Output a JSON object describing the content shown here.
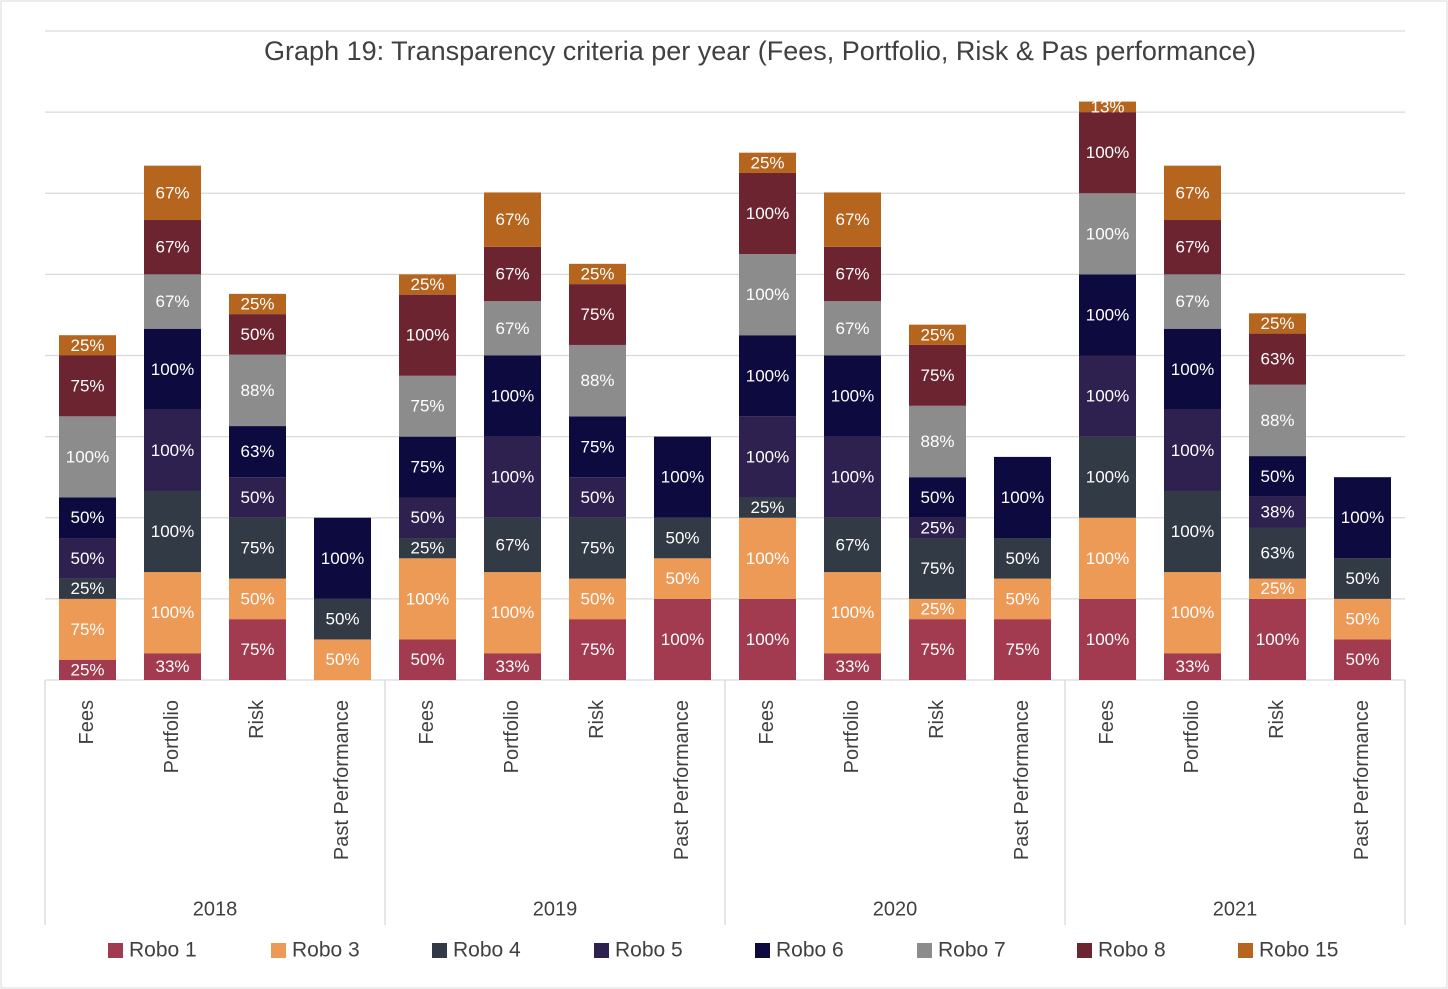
{
  "chart_data": {
    "type": "stacked_bar",
    "title": "Graph 19: Transparency criteria per year (Fees, Portfolio, Risk & Pas performance)",
    "groups": [
      "2018",
      "2019",
      "2020",
      "2021"
    ],
    "categories": [
      "Fees",
      "Portfolio",
      "Risk",
      "Past Performance",
      "Fees",
      "Portfolio",
      "Risk",
      "Past Performance",
      "Fees",
      "Portfolio",
      "Risk",
      "Past Performance",
      "Fees",
      "Portfolio",
      "Risk",
      "Past Performance"
    ],
    "ylim": [
      0,
      800
    ],
    "yticks": [
      0,
      100,
      200,
      300,
      400,
      500,
      600,
      700,
      800
    ],
    "grid": true,
    "legend": "bottom",
    "series": [
      {
        "name": "Robo 1",
        "color": "#a23b4f",
        "values": [
          25,
          33,
          75,
          null,
          50,
          33,
          75,
          100,
          100,
          33,
          75,
          75,
          100,
          33,
          100,
          50
        ],
        "value_labels": [
          "25%",
          "33%",
          "75%",
          null,
          "50%",
          "33%",
          "75%",
          "100%",
          "100%",
          "33%",
          "75%",
          "75%",
          "100%",
          "33%",
          "100%",
          "50%"
        ]
      },
      {
        "name": "Robo 3",
        "color": "#ec9a56",
        "values": [
          75,
          100,
          50,
          50,
          100,
          100,
          50,
          50,
          100,
          100,
          25,
          50,
          100,
          100,
          25,
          50
        ],
        "value_labels": [
          "75%",
          "100%",
          "50%",
          "50%",
          "100%",
          "100%",
          "50%",
          "50%",
          "100%",
          "100%",
          "25%",
          "50%",
          "100%",
          "100%",
          "25%",
          "50%"
        ]
      },
      {
        "name": "Robo 4",
        "color": "#323a45",
        "values": [
          25,
          100,
          75,
          50,
          25,
          67,
          75,
          50,
          25,
          67,
          75,
          50,
          100,
          100,
          63,
          50
        ],
        "value_labels": [
          "25%",
          "100%",
          "75%",
          "50%",
          "25%",
          "67%",
          "75%",
          "50%",
          "25%",
          "67%",
          "75%",
          "50%",
          "100%",
          "100%",
          "63%",
          "50%"
        ]
      },
      {
        "name": "Robo 5",
        "color": "#2e2150",
        "values": [
          50,
          100,
          50,
          null,
          50,
          100,
          50,
          null,
          100,
          100,
          25,
          null,
          100,
          100,
          38,
          null
        ],
        "value_labels": [
          "50%",
          "100%",
          "50%",
          null,
          "50%",
          "100%",
          "50%",
          null,
          "100%",
          "100%",
          "25%",
          null,
          "100%",
          "100%",
          "38%",
          null
        ]
      },
      {
        "name": "Robo 6",
        "color": "#0c0a3e",
        "values": [
          50,
          100,
          63,
          100,
          75,
          100,
          75,
          100,
          100,
          100,
          50,
          100,
          100,
          100,
          50,
          100
        ],
        "value_labels": [
          "50%",
          "100%",
          "63%",
          "100%",
          "75%",
          "100%",
          "75%",
          "100%",
          "100%",
          "100%",
          "50%",
          "100%",
          "100%",
          "100%",
          "50%",
          "100%"
        ]
      },
      {
        "name": "Robo 7",
        "color": "#8c8c8c",
        "values": [
          100,
          67,
          88,
          null,
          75,
          67,
          88,
          null,
          100,
          67,
          88,
          null,
          100,
          67,
          88,
          null
        ],
        "value_labels": [
          "100%",
          "67%",
          "88%",
          null,
          "75%",
          "67%",
          "88%",
          null,
          "100%",
          "67%",
          "88%",
          null,
          "100%",
          "67%",
          "88%",
          null
        ]
      },
      {
        "name": "Robo 8",
        "color": "#6b2430",
        "values": [
          75,
          67,
          50,
          null,
          100,
          67,
          75,
          null,
          100,
          67,
          75,
          null,
          100,
          67,
          63,
          null
        ],
        "value_labels": [
          "75%",
          "67%",
          "50%",
          null,
          "100%",
          "67%",
          "75%",
          null,
          "100%",
          "67%",
          "75%",
          null,
          "100%",
          "67%",
          "63%",
          null
        ]
      },
      {
        "name": "Robo 15",
        "color": "#b5651d",
        "values": [
          25,
          67,
          25,
          null,
          25,
          67,
          25,
          null,
          25,
          67,
          25,
          null,
          13,
          67,
          25,
          null
        ],
        "value_labels": [
          "25%",
          "67%",
          "25%",
          null,
          "25%",
          "67%",
          "25%",
          null,
          "25%",
          "67%",
          "25%",
          null,
          "13%",
          "67%",
          "25%",
          null
        ]
      }
    ]
  }
}
